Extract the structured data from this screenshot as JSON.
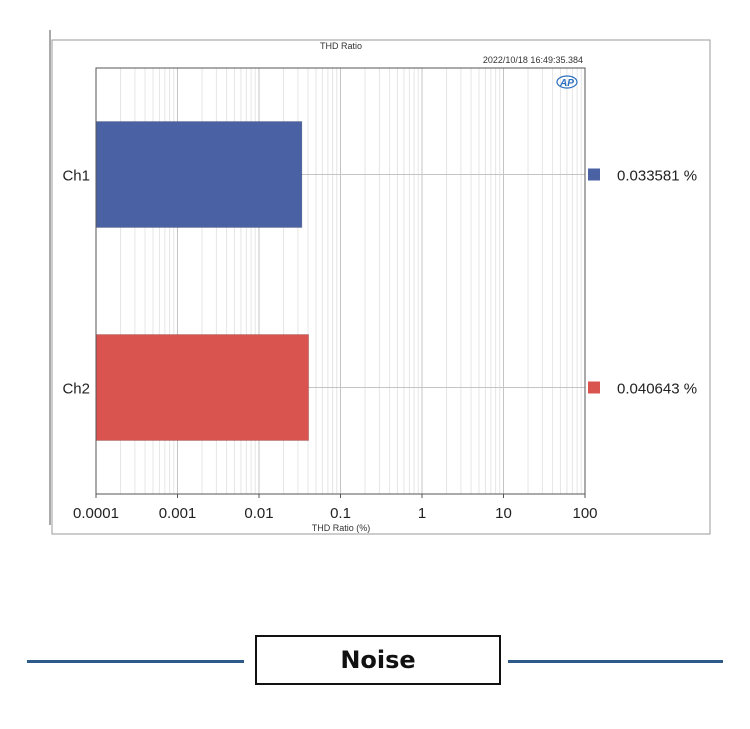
{
  "chart_data": {
    "type": "bar",
    "orientation": "horizontal",
    "title": "THD Ratio",
    "timestamp": "2022/10/18 16:49:35.384",
    "logo_text": "AP",
    "xlabel": "THD Ratio (%)",
    "x_scale": "log",
    "xlim": [
      0.0001,
      100
    ],
    "x_ticks": [
      "0.0001",
      "0.001",
      "0.01",
      "0.1",
      "1",
      "10",
      "100"
    ],
    "categories": [
      "Ch1",
      "Ch2"
    ],
    "values": [
      0.033581,
      0.040643
    ],
    "value_labels": [
      "0.033581 %",
      "0.040643 %"
    ],
    "colors": [
      "#4a62a3",
      "#d9534f"
    ],
    "grid": true
  },
  "section": {
    "label": "Noise",
    "line_color": "#2e5a8a"
  }
}
